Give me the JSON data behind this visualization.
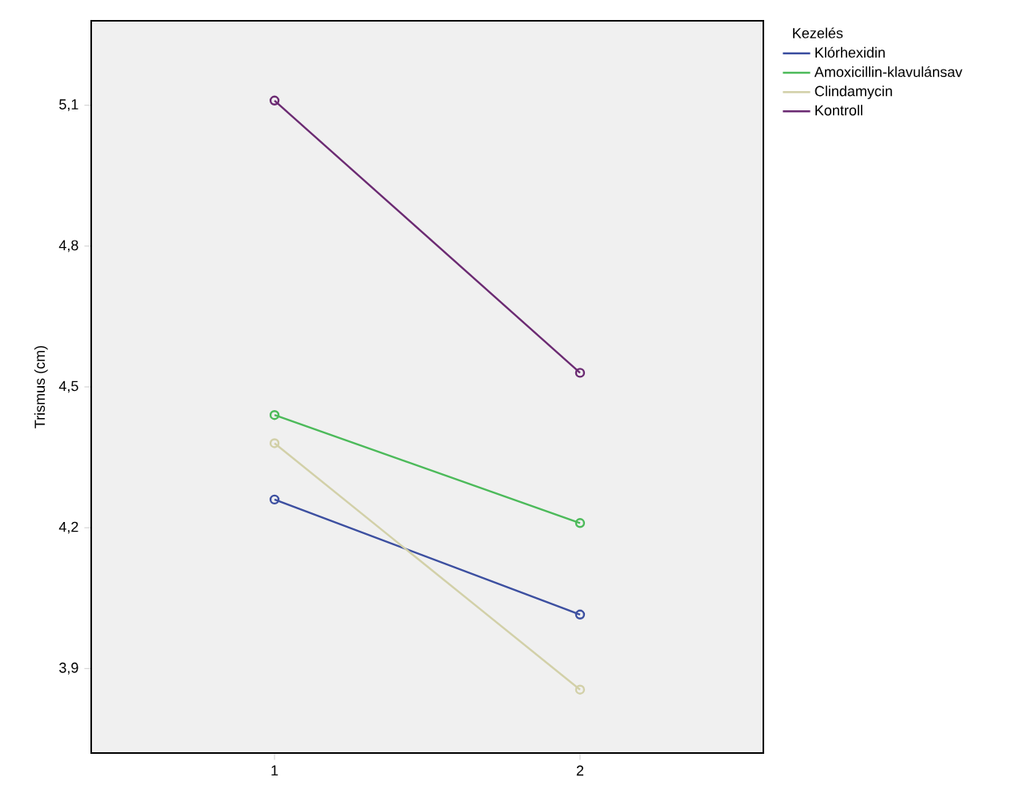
{
  "chart_data": {
    "type": "line",
    "ylabel": "Trismus (cm)",
    "legend_title": "Kezelés",
    "x": [
      1,
      2
    ],
    "xlim": [
      0.4,
      2.6
    ],
    "xticks": [
      1,
      2
    ],
    "ylim": [
      3.72,
      5.28
    ],
    "yticks": [
      {
        "value": 3.9,
        "label": "3,9"
      },
      {
        "value": 4.2,
        "label": "4,2"
      },
      {
        "value": 4.5,
        "label": "4,5"
      },
      {
        "value": 4.8,
        "label": "4,8"
      },
      {
        "value": 5.1,
        "label": "5,1"
      }
    ],
    "series": [
      {
        "name": "Klórhexidin",
        "color": "#3c4fa0",
        "values": [
          4.26,
          4.015
        ]
      },
      {
        "name": "Amoxicillin-klavulánsav",
        "color": "#4cba5a",
        "values": [
          4.44,
          4.21
        ]
      },
      {
        "name": "Clindamycin",
        "color": "#d2d0a8",
        "values": [
          4.38,
          3.855
        ]
      },
      {
        "name": "Kontroll",
        "color": "#6b2a72",
        "values": [
          5.11,
          4.53
        ]
      }
    ],
    "marker": "circle",
    "legend": "right",
    "grid": false
  }
}
